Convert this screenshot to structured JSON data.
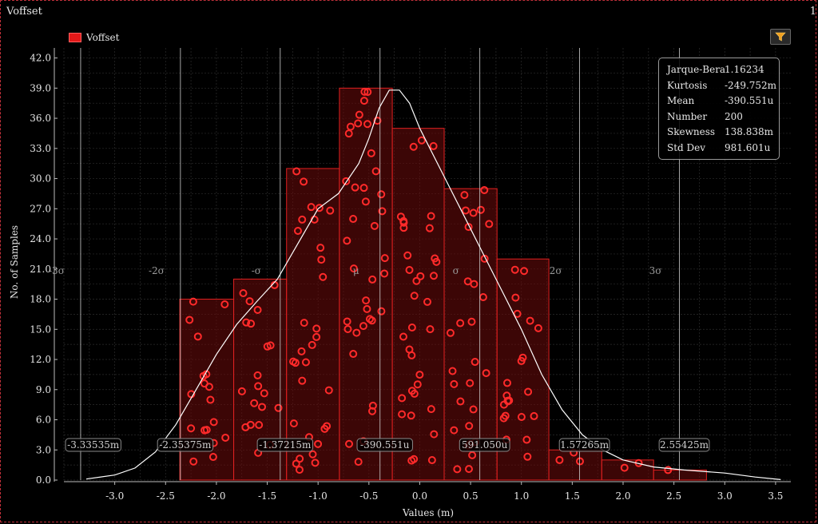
{
  "window": {
    "title": "Voffset",
    "corner_number": "1"
  },
  "legend": {
    "label": "Voffset",
    "color": "#e21818"
  },
  "filter_button": {
    "icon": "filter-icon"
  },
  "stats": [
    {
      "label": "Jarque-Bera",
      "value": "1.16234"
    },
    {
      "label": "Kurtosis",
      "value": "-249.752m"
    },
    {
      "label": "Mean",
      "value": "-390.551u"
    },
    {
      "label": "Number",
      "value": "200"
    },
    {
      "label": "Skewness",
      "value": "138.838m"
    },
    {
      "label": "Std Dev",
      "value": "981.601u"
    }
  ],
  "chart_data": {
    "type": "bar",
    "title": "",
    "xlabel": "Values (m)",
    "ylabel": "No. of Samples",
    "xlim": [
      -3.5,
      3.65
    ],
    "ylim": [
      0,
      43
    ],
    "x_ticks": [
      "-3.0",
      "-2.5",
      "-2.0",
      "-1.5",
      "-1.0",
      "-0.5",
      "0.0",
      "0.5",
      "1.0",
      "1.5",
      "2.0",
      "2.5",
      "3.0",
      "3.5"
    ],
    "y_ticks": [
      "0.0",
      "3.0",
      "6.0",
      "9.0",
      "12.0",
      "15.0",
      "18.0",
      "21.0",
      "24.0",
      "27.0",
      "30.0",
      "33.0",
      "36.0",
      "39.0",
      "42.0"
    ],
    "bins": [
      {
        "start": -2.36,
        "end": -1.83,
        "count": 18
      },
      {
        "start": -1.83,
        "end": -1.31,
        "count": 20
      },
      {
        "start": -1.31,
        "end": -0.79,
        "count": 31
      },
      {
        "start": -0.79,
        "end": -0.27,
        "count": 39
      },
      {
        "start": -0.27,
        "end": 0.24,
        "count": 35
      },
      {
        "start": 0.24,
        "end": 0.76,
        "count": 29
      },
      {
        "start": 0.76,
        "end": 1.27,
        "count": 22
      },
      {
        "start": 1.27,
        "end": 1.79,
        "count": 3
      },
      {
        "start": 1.79,
        "end": 2.3,
        "count": 2
      },
      {
        "start": 2.3,
        "end": 2.82,
        "count": 1
      }
    ],
    "density_curve": [
      [
        -3.28,
        0.1
      ],
      [
        -3.0,
        0.5
      ],
      [
        -2.8,
        1.2
      ],
      [
        -2.6,
        2.8
      ],
      [
        -2.4,
        5.5
      ],
      [
        -2.2,
        9.0
      ],
      [
        -2.0,
        12.5
      ],
      [
        -1.8,
        15.5
      ],
      [
        -1.6,
        17.8
      ],
      [
        -1.4,
        20.0
      ],
      [
        -1.2,
        23.5
      ],
      [
        -1.0,
        27.0
      ],
      [
        -0.8,
        28.5
      ],
      [
        -0.6,
        31.5
      ],
      [
        -0.5,
        34.0
      ],
      [
        -0.4,
        37.0
      ],
      [
        -0.3,
        38.8
      ],
      [
        -0.2,
        38.8
      ],
      [
        -0.1,
        37.5
      ],
      [
        0.0,
        35.0
      ],
      [
        0.2,
        31.0
      ],
      [
        0.4,
        27.0
      ],
      [
        0.6,
        23.0
      ],
      [
        0.8,
        19.0
      ],
      [
        1.0,
        15.0
      ],
      [
        1.2,
        10.5
      ],
      [
        1.4,
        7.0
      ],
      [
        1.6,
        4.5
      ],
      [
        1.8,
        3.0
      ],
      [
        2.0,
        2.0
      ],
      [
        2.3,
        1.3
      ],
      [
        2.6,
        1.0
      ],
      [
        3.0,
        0.7
      ],
      [
        3.3,
        0.3
      ],
      [
        3.55,
        0.05
      ]
    ],
    "sigma_lines": [
      {
        "x": -3.33535,
        "label": "-3σ",
        "value_label": "-3.33535m"
      },
      {
        "x": -2.35375,
        "label": "-2σ",
        "value_label": "-2.35375m"
      },
      {
        "x": -1.37215,
        "label": "-σ",
        "value_label": "-1.37215m"
      },
      {
        "x": -0.390551,
        "label": "μ",
        "value_label": "-390.551u"
      },
      {
        "x": 0.59105,
        "label": "σ",
        "value_label": "591.050u"
      },
      {
        "x": 1.57265,
        "label": "2σ",
        "value_label": "1.57265m"
      },
      {
        "x": 2.55425,
        "label": "3σ",
        "value_label": "2.55425m"
      }
    ],
    "colors": {
      "bar_fill": "#6e0b0b",
      "bar_stroke": "#e02020",
      "marker": "#ff2a2a",
      "curve": "#ffffff",
      "background": "#000000"
    },
    "grid": true
  }
}
